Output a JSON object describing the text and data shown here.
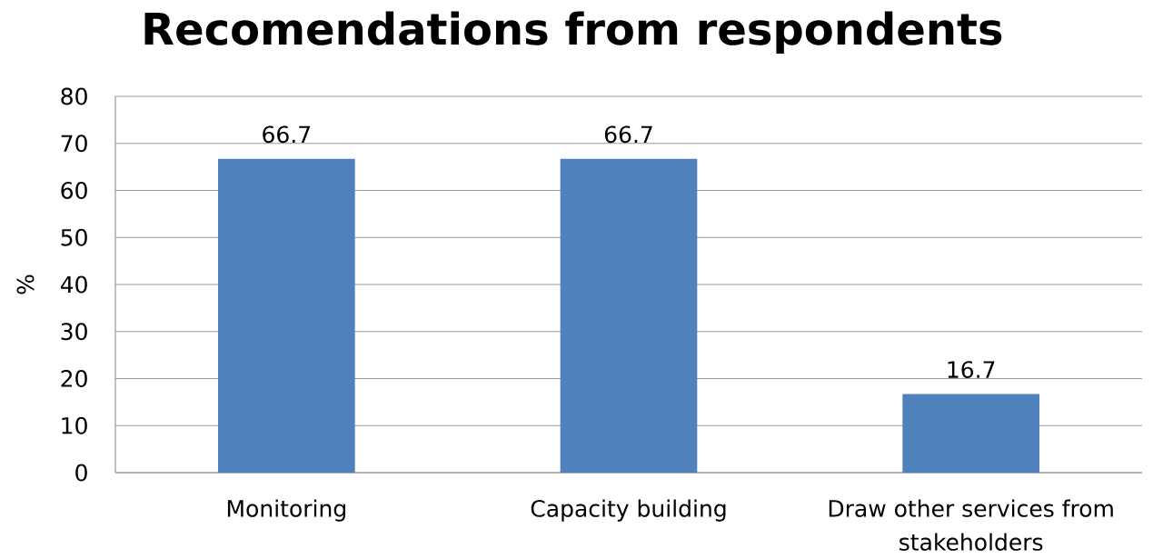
{
  "chart_data": {
    "type": "bar",
    "title": "Recomendations from respondents",
    "ylabel": "%",
    "categories": [
      "Monitoring",
      "Capacity building",
      "Draw other services from stakeholders"
    ],
    "values": [
      66.7,
      66.7,
      16.7
    ],
    "color": "#4f81bd",
    "ylim": [
      0,
      80
    ],
    "yticks": [
      0,
      10,
      20,
      30,
      40,
      50,
      60,
      70,
      80
    ],
    "grid": "y",
    "data_labels": true
  }
}
